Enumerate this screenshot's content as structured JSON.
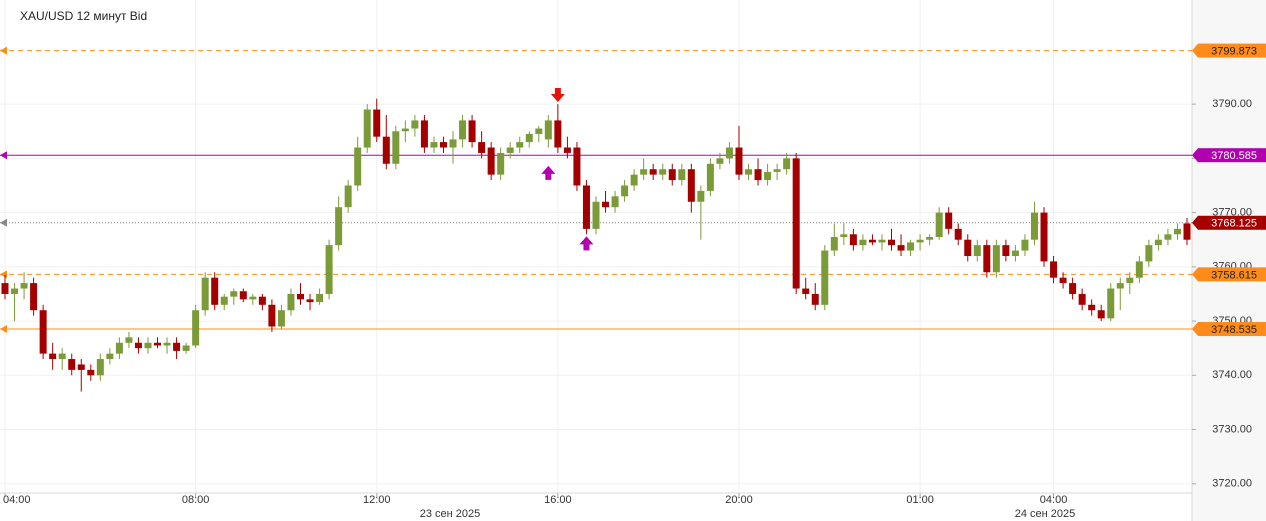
{
  "chart_data": {
    "type": "candlestick",
    "title": "XAU/USD  12 минут Bid",
    "categories": [
      "04:00",
      null,
      null,
      null,
      null,
      null,
      null,
      null,
      null,
      null,
      null,
      null,
      null,
      null,
      null,
      null,
      null,
      null,
      null,
      null,
      "08:00",
      null,
      null,
      null,
      null,
      null,
      null,
      null,
      null,
      null,
      null,
      null,
      null,
      null,
      null,
      null,
      null,
      null,
      null,
      "12:00",
      null,
      null,
      null,
      null,
      null,
      null,
      null,
      null,
      null,
      null,
      null,
      null,
      null,
      null,
      null,
      null,
      null,
      null,
      "16:00",
      null,
      null,
      null,
      null,
      null,
      null,
      null,
      null,
      null,
      null,
      null,
      null,
      null,
      null,
      null,
      null,
      null,
      null,
      "20:00",
      null,
      null,
      null,
      null,
      null,
      null,
      null,
      null,
      null,
      null,
      null,
      null,
      null,
      null,
      null,
      null,
      null,
      null,
      "01:00",
      null,
      null,
      null,
      null,
      null,
      null,
      null,
      null,
      null,
      null,
      null,
      null,
      null,
      "04:00",
      null,
      null,
      null,
      null,
      null,
      null,
      null,
      null,
      null,
      null,
      null,
      null,
      null,
      null
    ],
    "date_labels": [
      "23 сен 2025",
      "24 сен 2025"
    ],
    "open": [
      3757,
      3755,
      3756,
      3757,
      3752,
      3744,
      3743,
      3743,
      3742,
      3741,
      3740,
      3743,
      3744,
      3746,
      3746,
      3745,
      3746,
      3745.5,
      3746,
      3744.5,
      3745.5,
      3752,
      3758,
      3753,
      3754.5,
      3755.5,
      3754,
      3754.5,
      3753,
      3749,
      3752,
      3755,
      3754,
      3753.5,
      3755,
      3764,
      3771,
      3775,
      3782,
      3789,
      3784,
      3779,
      3785,
      3785.5,
      3787,
      3782,
      3783,
      3782,
      3783.5,
      3787,
      3783,
      3782,
      3777,
      3781,
      3782,
      3783,
      3784.5,
      3783.5,
      3787,
      3782,
      3782,
      3775,
      3767,
      3772,
      3771,
      3773,
      3775,
      3777,
      3778,
      3777,
      3778,
      3776,
      3778,
      3772,
      3774,
      3779,
      3780,
      3782,
      3777,
      3778,
      3776,
      3777.5,
      3778,
      3780,
      3756,
      3755,
      3753,
      3763,
      3765.5,
      3766,
      3764,
      3765,
      3764.5,
      3765,
      3764,
      3763,
      3764.5,
      3765,
      3765.5,
      3770,
      3767,
      3765,
      3762,
      3764,
      3759,
      3764,
      3762,
      3763,
      3765,
      3770,
      3761,
      3758,
      3757,
      3755,
      3753,
      3752,
      3750.5,
      3756,
      3757,
      3758,
      3761,
      3764,
      3765,
      3766,
      3768
    ],
    "high": [
      3758.5,
      3757,
      3759,
      3758,
      3753,
      3746,
      3745,
      3744,
      3743,
      3742,
      3744,
      3745,
      3747,
      3748,
      3747,
      3747,
      3747,
      3747,
      3747,
      3746,
      3753,
      3759,
      3759,
      3755,
      3756,
      3756,
      3755,
      3755,
      3754,
      3753,
      3756,
      3757,
      3755,
      3756,
      3765,
      3773,
      3776,
      3784,
      3790,
      3791,
      3788,
      3786,
      3787,
      3788,
      3788,
      3784,
      3784,
      3785,
      3788,
      3788,
      3785,
      3783,
      3782,
      3783,
      3784,
      3785,
      3786,
      3788,
      3790,
      3784,
      3783,
      3776,
      3773,
      3774,
      3774,
      3776,
      3778,
      3780,
      3779,
      3779,
      3779,
      3779,
      3779,
      3775,
      3780,
      3781,
      3783,
      3786,
      3779,
      3780,
      3779,
      3779,
      3781,
      3781,
      3758,
      3757,
      3764,
      3768,
      3768,
      3767,
      3766,
      3766,
      3766,
      3767,
      3766,
      3765,
      3766,
      3766,
      3771,
      3771,
      3768,
      3766,
      3765,
      3765,
      3765,
      3765,
      3764,
      3766,
      3772,
      3771,
      3762,
      3759,
      3758,
      3756,
      3754,
      3753,
      3757,
      3758,
      3759,
      3762,
      3765,
      3766,
      3767,
      3768,
      3769
    ],
    "low": [
      3754,
      3750,
      3754,
      3751,
      3743,
      3741,
      3741,
      3740,
      3737,
      3739,
      3739,
      3742,
      3743,
      3745,
      3744,
      3744,
      3745,
      3744,
      3743,
      3744,
      3745,
      3751,
      3752,
      3752,
      3753,
      3753.5,
      3753,
      3752,
      3748,
      3748.5,
      3751,
      3753,
      3752,
      3753,
      3754,
      3763,
      3770,
      3774,
      3781,
      3783,
      3778,
      3778,
      3783,
      3784,
      3781,
      3781,
      3781,
      3779,
      3782,
      3782,
      3780,
      3776,
      3776,
      3780,
      3781,
      3782,
      3783,
      3782,
      3781,
      3780,
      3774,
      3766,
      3766,
      3770,
      3770,
      3772,
      3774,
      3776,
      3776,
      3776,
      3775,
      3775,
      3770,
      3765,
      3773,
      3778,
      3779,
      3776,
      3776,
      3775,
      3775,
      3776,
      3777,
      3755,
      3754,
      3752,
      3752,
      3762,
      3764,
      3763,
      3763,
      3764,
      3763,
      3763,
      3762,
      3762,
      3763,
      3764,
      3765,
      3766,
      3764,
      3761,
      3761,
      3758,
      3758,
      3761,
      3761,
      3762,
      3764,
      3760,
      3757,
      3756,
      3754,
      3752,
      3751,
      3750,
      3750,
      3752,
      3755,
      3757,
      3760,
      3763,
      3764,
      3765,
      3764
    ],
    "close": [
      3755,
      3756,
      3757,
      3752,
      3744,
      3743,
      3744,
      3741,
      3741,
      3740,
      3743,
      3744,
      3746,
      3747,
      3745,
      3746,
      3745.5,
      3746,
      3744.5,
      3745.5,
      3752,
      3758,
      3753,
      3754.5,
      3755.5,
      3754,
      3754.5,
      3753,
      3749,
      3752,
      3755,
      3754,
      3753.5,
      3755,
      3764,
      3771,
      3775,
      3782,
      3789,
      3784,
      3779,
      3785,
      3785.5,
      3787,
      3782,
      3783,
      3782,
      3783.5,
      3787,
      3783,
      3781,
      3777,
      3781,
      3782,
      3783,
      3784.5,
      3785.5,
      3787,
      3782,
      3781,
      3775,
      3767,
      3772,
      3771,
      3773,
      3775,
      3777,
      3778,
      3777,
      3778,
      3776,
      3778,
      3772,
      3774,
      3779,
      3780,
      3782,
      3777,
      3778,
      3776,
      3777.5,
      3778,
      3780,
      3756,
      3755,
      3753,
      3763,
      3765.5,
      3766,
      3764,
      3765,
      3764.5,
      3765,
      3764,
      3763,
      3764.5,
      3765,
      3765.5,
      3770,
      3767,
      3765,
      3762,
      3764,
      3759,
      3764,
      3762,
      3763,
      3765,
      3770,
      3761,
      3758,
      3757,
      3755,
      3753,
      3752,
      3750.5,
      3756,
      3757,
      3758,
      3761,
      3764,
      3765,
      3766,
      3767,
      3765
    ],
    "up_color": "#7b9b39",
    "down_color": "#a40000",
    "ylim": [
      3718.3,
      3809.2
    ],
    "yticks": [
      {
        "value": 3720,
        "label": "3720.00"
      },
      {
        "value": 3730,
        "label": "3730.00"
      },
      {
        "value": 3740,
        "label": "3740.00"
      },
      {
        "value": 3750,
        "label": "3750.00"
      },
      {
        "value": 3760,
        "label": "3760.00"
      },
      {
        "value": 3770,
        "label": "3770.00"
      },
      {
        "value": 3780,
        "label": "3780.00"
      },
      {
        "value": 3790,
        "label": "3790.00"
      }
    ],
    "grid": true,
    "levels": [
      {
        "value": 3799.873,
        "color": "#ff8c1a",
        "style": "dashed",
        "text_color": "#222222"
      },
      {
        "value": 3780.585,
        "color": "#b000b0",
        "style": "solid",
        "text_color": "#ffffff"
      },
      {
        "value": 3768.125,
        "color": "#888888",
        "style": "dotted",
        "text_color": "#ffffff",
        "label_color": "#a40000"
      },
      {
        "value": 3758.615,
        "color": "#ff8c1a",
        "style": "dashed",
        "text_color": "#222222"
      },
      {
        "value": 3748.535,
        "color": "#ff8c1a",
        "style": "solid",
        "text_color": "#222222"
      }
    ],
    "signals": [
      {
        "index": 58,
        "price": 3791.5,
        "direction": "down",
        "color": "#e8120c"
      },
      {
        "index": 57,
        "price": 3777.5,
        "direction": "up",
        "color": "#b000b0"
      },
      {
        "index": 61,
        "price": 3764.5,
        "direction": "up",
        "color": "#b000b0"
      }
    ]
  }
}
